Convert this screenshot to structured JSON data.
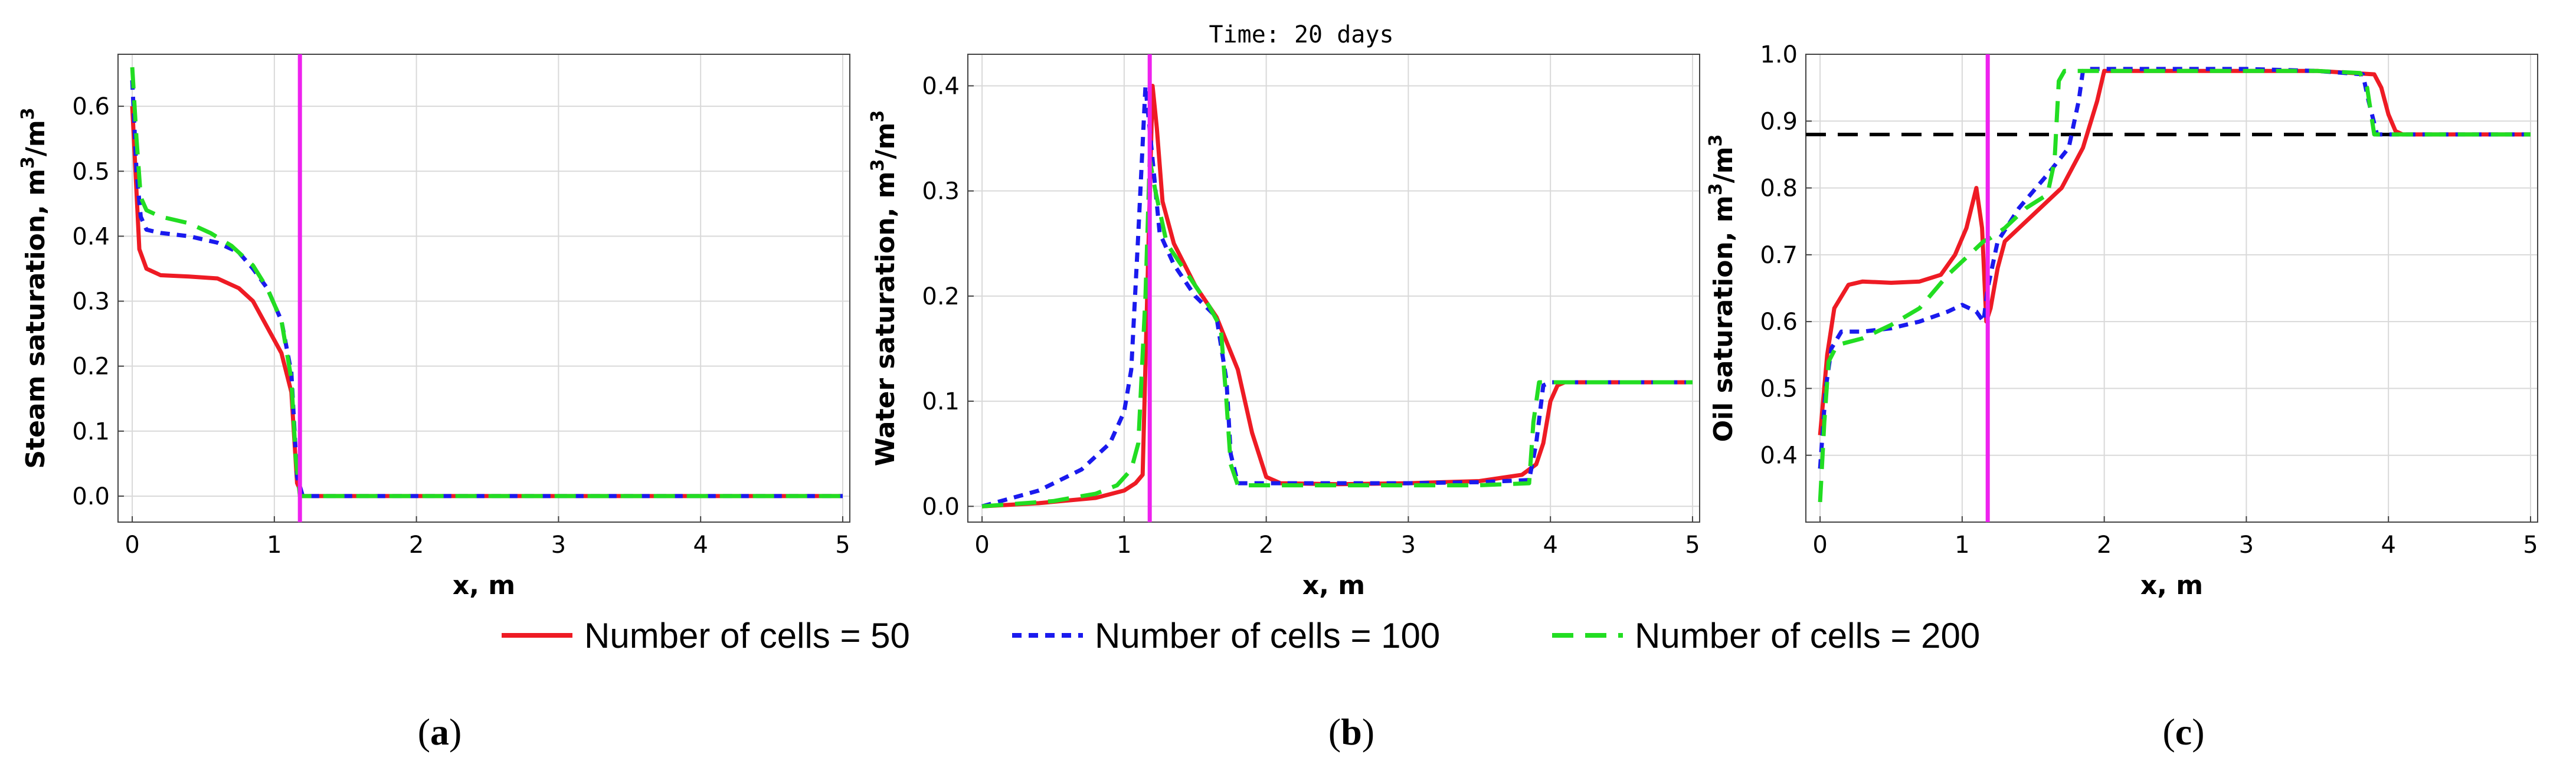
{
  "title": "Time: 20 days",
  "legend": [
    {
      "label": "Number of cells = 50",
      "color": "#ee1b24",
      "dash": "solid"
    },
    {
      "label": "Number of cells = 100",
      "color": "#1a1aee",
      "dash": "short"
    },
    {
      "label": "Number of cells = 200",
      "color": "#22dd22",
      "dash": "long"
    }
  ],
  "panel_labels": [
    {
      "open": "(",
      "letter": "a",
      "close": ")"
    },
    {
      "open": "(",
      "letter": "b",
      "close": ")"
    },
    {
      "open": "(",
      "letter": "c",
      "close": ")"
    }
  ],
  "chart_data": [
    {
      "type": "line",
      "xlabel": "x, m",
      "ylabel": "Steam saturation, m3/m3",
      "ylabel_text": "Steam saturation, m",
      "unit_exp": "3",
      "unit_sep": "/m",
      "xlim": [
        -0.1,
        5.05
      ],
      "ylim": [
        -0.04,
        0.68
      ],
      "xticks": [
        0,
        1,
        2,
        3,
        4,
        5
      ],
      "yticks": [
        0.0,
        0.1,
        0.2,
        0.3,
        0.4,
        0.5,
        0.6
      ],
      "ytick_labels": [
        "0.0",
        "0.1",
        "0.2",
        "0.3",
        "0.4",
        "0.5",
        "0.6"
      ],
      "front_x": 1.18,
      "front_color": "#ee22ee",
      "series": [
        {
          "name": "Number of cells = 50",
          "x": [
            0.0,
            0.05,
            0.1,
            0.2,
            0.4,
            0.6,
            0.75,
            0.85,
            0.95,
            1.05,
            1.12,
            1.16,
            1.2,
            5.0
          ],
          "y": [
            0.6,
            0.38,
            0.35,
            0.34,
            0.338,
            0.335,
            0.32,
            0.3,
            0.26,
            0.22,
            0.16,
            0.02,
            0.0,
            0.0
          ]
        },
        {
          "name": "Number of cells = 100",
          "x": [
            0.0,
            0.03,
            0.06,
            0.1,
            0.2,
            0.4,
            0.6,
            0.75,
            0.85,
            0.95,
            1.05,
            1.12,
            1.16,
            1.2,
            5.0
          ],
          "y": [
            0.64,
            0.5,
            0.43,
            0.41,
            0.405,
            0.4,
            0.39,
            0.375,
            0.35,
            0.32,
            0.27,
            0.19,
            0.03,
            0.0,
            0.0
          ]
        },
        {
          "name": "Number of cells = 200",
          "x": [
            0.0,
            0.03,
            0.06,
            0.1,
            0.2,
            0.4,
            0.55,
            0.7,
            0.85,
            0.95,
            1.05,
            1.12,
            1.15,
            1.18,
            5.0
          ],
          "y": [
            0.66,
            0.55,
            0.46,
            0.44,
            0.43,
            0.42,
            0.405,
            0.385,
            0.355,
            0.32,
            0.27,
            0.18,
            0.06,
            0.0,
            0.0
          ]
        }
      ]
    },
    {
      "type": "line",
      "xlabel": "x, m",
      "ylabel": "Water saturation, m3/m3",
      "ylabel_text": "Water saturation, m",
      "unit_exp": "3",
      "unit_sep": "/m",
      "xlim": [
        -0.1,
        5.05
      ],
      "ylim": [
        -0.015,
        0.43
      ],
      "xticks": [
        0,
        1,
        2,
        3,
        4,
        5
      ],
      "yticks": [
        0.0,
        0.1,
        0.2,
        0.3,
        0.4
      ],
      "ytick_labels": [
        "0.0",
        "0.1",
        "0.2",
        "0.3",
        "0.4"
      ],
      "front_x": 1.18,
      "front_color": "#ee22ee",
      "series": [
        {
          "name": "Number of cells = 50",
          "x": [
            0.0,
            0.4,
            0.8,
            1.0,
            1.08,
            1.13,
            1.2,
            1.23,
            1.27,
            1.35,
            1.5,
            1.65,
            1.8,
            1.9,
            2.0,
            2.1,
            2.5,
            3.0,
            3.5,
            3.8,
            3.9,
            3.95,
            4.0,
            4.05,
            4.1,
            5.0
          ],
          "y": [
            0.0,
            0.003,
            0.008,
            0.015,
            0.022,
            0.03,
            0.4,
            0.36,
            0.29,
            0.25,
            0.21,
            0.18,
            0.13,
            0.07,
            0.028,
            0.022,
            0.021,
            0.022,
            0.024,
            0.03,
            0.04,
            0.06,
            0.1,
            0.115,
            0.118,
            0.118
          ]
        },
        {
          "name": "Number of cells = 100",
          "x": [
            0.0,
            0.4,
            0.7,
            0.9,
            1.0,
            1.05,
            1.1,
            1.15,
            1.2,
            1.25,
            1.35,
            1.5,
            1.65,
            1.72,
            1.75,
            1.8,
            2.0,
            2.5,
            3.0,
            3.5,
            3.85,
            3.9,
            3.95,
            4.0,
            5.0
          ],
          "y": [
            0.0,
            0.015,
            0.035,
            0.06,
            0.09,
            0.13,
            0.26,
            0.4,
            0.33,
            0.26,
            0.23,
            0.2,
            0.18,
            0.12,
            0.05,
            0.022,
            0.022,
            0.022,
            0.022,
            0.023,
            0.025,
            0.06,
            0.115,
            0.118,
            0.118
          ]
        },
        {
          "name": "Number of cells = 200",
          "x": [
            0.0,
            0.5,
            0.8,
            0.95,
            1.05,
            1.1,
            1.15,
            1.18,
            1.22,
            1.3,
            1.45,
            1.6,
            1.68,
            1.72,
            1.75,
            1.8,
            2.0,
            2.5,
            3.0,
            3.5,
            3.85,
            3.88,
            3.92,
            4.0,
            5.0
          ],
          "y": [
            0.0,
            0.005,
            0.012,
            0.02,
            0.035,
            0.06,
            0.2,
            0.33,
            0.3,
            0.25,
            0.22,
            0.19,
            0.17,
            0.1,
            0.04,
            0.02,
            0.02,
            0.02,
            0.02,
            0.02,
            0.022,
            0.08,
            0.118,
            0.118,
            0.118
          ]
        }
      ]
    },
    {
      "type": "line",
      "xlabel": "x, m",
      "ylabel": "Oil saturation, m3/m3",
      "ylabel_text": "Oil saturation, m",
      "unit_exp": "3",
      "unit_sep": "/m",
      "xlim": [
        -0.1,
        5.05
      ],
      "ylim": [
        0.3,
        1.0
      ],
      "xticks": [
        0,
        1,
        2,
        3,
        4,
        5
      ],
      "yticks": [
        0.4,
        0.5,
        0.6,
        0.7,
        0.8,
        0.9,
        1.0
      ],
      "ytick_labels": [
        "0.4",
        "0.5",
        "0.6",
        "0.7",
        "0.8",
        "0.9",
        "1.0"
      ],
      "front_x": 1.18,
      "front_color": "#ee22ee",
      "reference_y": 0.88,
      "series": [
        {
          "name": "Number of cells = 50",
          "x": [
            0.0,
            0.05,
            0.1,
            0.2,
            0.3,
            0.5,
            0.7,
            0.85,
            0.95,
            1.03,
            1.1,
            1.14,
            1.17,
            1.2,
            1.25,
            1.3,
            1.5,
            1.7,
            1.85,
            1.95,
            2.0,
            2.5,
            3.0,
            3.5,
            3.9,
            3.95,
            4.0,
            4.05,
            4.1,
            5.0
          ],
          "y": [
            0.43,
            0.55,
            0.62,
            0.655,
            0.66,
            0.658,
            0.66,
            0.67,
            0.7,
            0.74,
            0.8,
            0.74,
            0.6,
            0.62,
            0.68,
            0.72,
            0.76,
            0.8,
            0.86,
            0.93,
            0.975,
            0.975,
            0.975,
            0.975,
            0.97,
            0.95,
            0.91,
            0.885,
            0.88,
            0.88
          ]
        },
        {
          "name": "Number of cells = 100",
          "x": [
            0.0,
            0.04,
            0.08,
            0.15,
            0.3,
            0.5,
            0.7,
            0.9,
            1.0,
            1.1,
            1.15,
            1.18,
            1.25,
            1.4,
            1.6,
            1.75,
            1.82,
            1.85,
            1.9,
            2.5,
            3.0,
            3.5,
            3.82,
            3.86,
            3.92,
            4.0,
            5.0
          ],
          "y": [
            0.38,
            0.5,
            0.56,
            0.585,
            0.585,
            0.59,
            0.6,
            0.615,
            0.625,
            0.615,
            0.6,
            0.65,
            0.72,
            0.77,
            0.82,
            0.86,
            0.93,
            0.975,
            0.978,
            0.978,
            0.978,
            0.975,
            0.97,
            0.93,
            0.88,
            0.88,
            0.88
          ]
        },
        {
          "name": "Number of cells = 200",
          "x": [
            0.0,
            0.03,
            0.06,
            0.12,
            0.3,
            0.5,
            0.7,
            0.9,
            1.05,
            1.15,
            1.2,
            1.3,
            1.45,
            1.6,
            1.65,
            1.68,
            1.72,
            2.0,
            2.5,
            3.0,
            3.5,
            3.8,
            3.85,
            3.9,
            5.0
          ],
          "y": [
            0.33,
            0.45,
            0.54,
            0.565,
            0.575,
            0.595,
            0.62,
            0.67,
            0.7,
            0.72,
            0.725,
            0.74,
            0.77,
            0.79,
            0.84,
            0.96,
            0.975,
            0.975,
            0.975,
            0.975,
            0.975,
            0.972,
            0.95,
            0.88,
            0.88
          ]
        }
      ]
    }
  ]
}
